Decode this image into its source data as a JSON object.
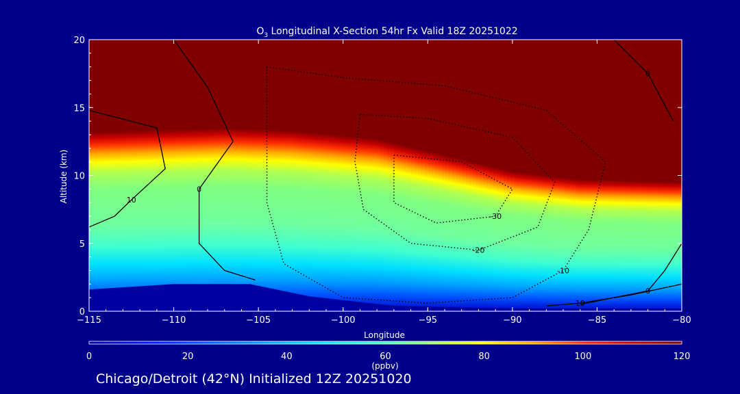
{
  "chart_data": {
    "type": "heatmap",
    "title": "O",
    "title_subscript": "3",
    "title_rest": " Longitudinal X-Section 54hr  Fx Valid 18Z 20251022",
    "xlabel": "Longitude",
    "ylabel": "Altitude (km)",
    "xlim": [
      -115,
      -80
    ],
    "ylim": [
      0,
      20
    ],
    "x_ticks": [
      -115,
      -110,
      -105,
      -100,
      -95,
      -90,
      -85,
      -80
    ],
    "x_tick_labels": [
      "−115",
      "−110",
      "−105",
      "−100",
      "−95",
      "−90",
      "−85",
      "−80"
    ],
    "y_ticks": [
      0,
      5,
      10,
      15,
      20
    ],
    "y_tick_labels": [
      "0",
      "5",
      "10",
      "15",
      "20"
    ],
    "colorbar": {
      "min": 0,
      "max": 120,
      "ticks": [
        0,
        20,
        40,
        60,
        80,
        100,
        120
      ],
      "tick_labels": [
        "0",
        "20",
        "40",
        "60",
        "80",
        "100",
        "120"
      ],
      "label": "(ppbv)"
    },
    "terrain_top_km": [
      [
        -115,
        1.6
      ],
      [
        -110,
        2.0
      ],
      [
        -105.5,
        2.0
      ],
      [
        -102,
        1.1
      ],
      [
        -97,
        0.4
      ],
      [
        -90,
        0.2
      ],
      [
        -80,
        0.2
      ]
    ],
    "ozone_band": {
      "tropopause_km": [
        [
          -115,
          12.5
        ],
        [
          -107,
          12.8
        ],
        [
          -103,
          12.6
        ],
        [
          -98,
          12.0
        ],
        [
          -94,
          10.8
        ],
        [
          -90,
          9.6
        ],
        [
          -86,
          9.0
        ],
        [
          -80,
          8.8
        ]
      ],
      "core_ppbv": 62,
      "surface_ppbv": 38
    },
    "contours": [
      {
        "label": "-10",
        "style": "dotted",
        "points": [
          [
            -104.5,
            18.0
          ],
          [
            -100,
            17.2
          ],
          [
            -94,
            16.6
          ],
          [
            -88,
            14.8
          ],
          [
            -84.5,
            11.0
          ],
          [
            -85.5,
            6.0
          ],
          [
            -87,
            3.0
          ],
          [
            -90,
            1.0
          ],
          [
            -95,
            0.6
          ],
          [
            -100,
            1.0
          ],
          [
            -103.5,
            3.5
          ],
          [
            -104.5,
            8.0
          ],
          [
            -104.5,
            18.0
          ]
        ]
      },
      {
        "label": "-20",
        "style": "dotted",
        "points": [
          [
            -99,
            14.5
          ],
          [
            -95,
            14.2
          ],
          [
            -90,
            12.8
          ],
          [
            -87.5,
            9.5
          ],
          [
            -88.5,
            6.2
          ],
          [
            -92,
            4.5
          ],
          [
            -96,
            5.0
          ],
          [
            -98.8,
            7.5
          ],
          [
            -99.3,
            11.0
          ],
          [
            -99,
            14.5
          ]
        ]
      },
      {
        "label": "-30",
        "style": "dotted",
        "points": [
          [
            -97,
            11.5
          ],
          [
            -93,
            11.0
          ],
          [
            -90,
            9.0
          ],
          [
            -91,
            7.0
          ],
          [
            -94.5,
            6.5
          ],
          [
            -97,
            8.0
          ],
          [
            -97,
            11.5
          ]
        ]
      },
      {
        "label": "0",
        "style": "solid",
        "points": [
          [
            -110,
            20
          ],
          [
            -108,
            16.5
          ],
          [
            -106.5,
            12.5
          ],
          [
            -108.5,
            9.0
          ],
          [
            -108.5,
            5.0
          ],
          [
            -107,
            3.0
          ],
          [
            -105.2,
            2.3
          ]
        ]
      },
      {
        "label": "10",
        "style": "solid",
        "points": [
          [
            -115,
            14.8
          ],
          [
            -111,
            13.5
          ],
          [
            -110.5,
            10.5
          ],
          [
            -112.5,
            8.2
          ],
          [
            -113.5,
            7.0
          ],
          [
            -115,
            6.2
          ]
        ]
      },
      {
        "label": "0",
        "style": "solid",
        "points": [
          [
            -84,
            20
          ],
          [
            -82,
            17.5
          ],
          [
            -80.5,
            14.0
          ]
        ]
      },
      {
        "label": "0",
        "style": "solid",
        "points": [
          [
            -80,
            5.0
          ],
          [
            -81,
            3.0
          ],
          [
            -82,
            1.5
          ],
          [
            -86,
            0.5
          ]
        ]
      },
      {
        "label": "10",
        "style": "solid",
        "points": [
          [
            -80,
            2.0
          ],
          [
            -83,
            1.2
          ],
          [
            -86,
            0.6
          ],
          [
            -88,
            0.4
          ]
        ]
      }
    ]
  },
  "footer": {
    "caption": "Chicago/Detroit (42°N) Initialized 12Z 20251020"
  }
}
